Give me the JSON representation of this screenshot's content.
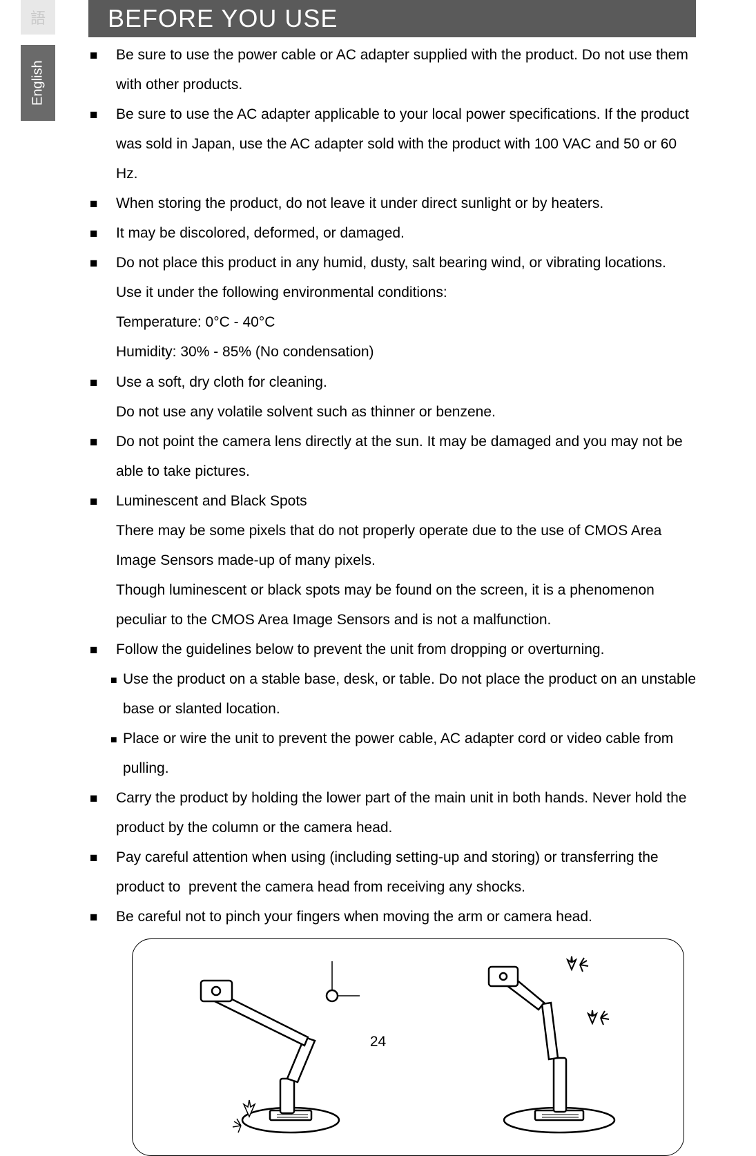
{
  "tabs": {
    "gray_label": "語",
    "active_label": "English"
  },
  "header": {
    "title": "BEFORE YOU USE"
  },
  "bullets": [
    {
      "text": "Be sure to use the power cable or AC adapter supplied with the product. Do not use them with other products."
    },
    {
      "text": "Be sure to use the AC adapter applicable to your local power specifications. If the product was sold in Japan, use the AC adapter sold with the product with 100 VAC and 50 or 60 Hz."
    },
    {
      "text": "When storing the product, do not leave it under direct sunlight or by heaters."
    },
    {
      "text": "It may be discolored, deformed, or damaged."
    },
    {
      "text": "Do not place this product in any humid, dusty, salt bearing wind, or vibrating locations.",
      "cont": [
        "Use it under the following environmental conditions:",
        "Temperature: 0°C - 40°C",
        "Humidity: 30% - 85% (No condensation)"
      ]
    },
    {
      "text": "Use a soft, dry cloth for cleaning.",
      "cont": [
        "Do not use any volatile solvent such as thinner or benzene."
      ]
    },
    {
      "text": "Do not point the camera lens directly at the sun. It may be damaged and you may not be able to take pictures."
    },
    {
      "text": "Luminescent and Black Spots",
      "cont": [
        "There may be some pixels that do not properly operate due to the use of CMOS Area Image Sensors made-up of many pixels.",
        "Though luminescent or black spots may be found on the screen, it is a phenomenon peculiar to the CMOS Area Image Sensors and is not a malfunction."
      ]
    },
    {
      "text": "Follow the guidelines below to prevent the unit from dropping or overturning.",
      "sub": [
        "Use the product on a stable base, desk, or table. Do not place the product on an unstable base or slanted location.",
        "Place or wire the unit to prevent the power cable, AC adapter cord or video cable from pulling."
      ]
    },
    {
      "text": "Carry the product by holding the lower part of the main unit in both hands. Never hold the product by the column or the camera head."
    },
    {
      "text": "Pay careful attention when using (including setting-up and storing) or transferring the product to&nbsp; prevent the camera head from receiving any shocks."
    },
    {
      "text": "Be careful not to pinch your fingers when moving the arm or camera head."
    }
  ],
  "page_number": "24",
  "colors": {
    "header_bg": "#5a5a5a",
    "tab_gray": "#e8e8e8",
    "tab_dark": "#6a6a6a",
    "text": "#000000"
  }
}
